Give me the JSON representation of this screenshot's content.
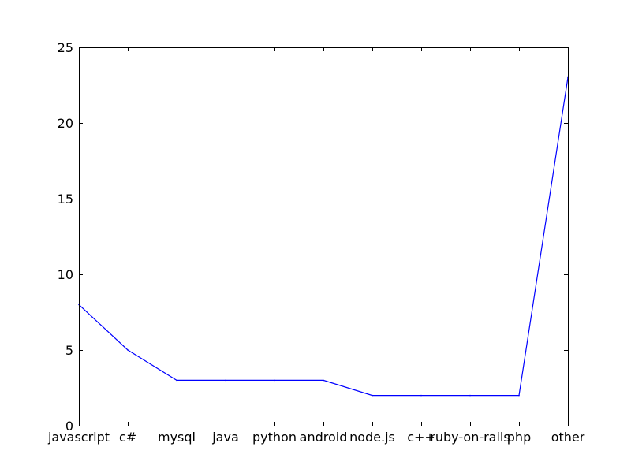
{
  "chart_data": {
    "type": "line",
    "title": "",
    "xlabel": "",
    "ylabel": "",
    "categories": [
      "javascript",
      "c#",
      "mysql",
      "java",
      "python",
      "android",
      "node.js",
      "c++",
      "ruby-on-rails",
      "php",
      "other"
    ],
    "series": [
      {
        "values": [
          8,
          5,
          3,
          3,
          3,
          3,
          2,
          2,
          2,
          2,
          23
        ]
      }
    ],
    "ylim": [
      0,
      25
    ],
    "yticks": [
      0,
      5,
      10,
      15,
      20,
      25
    ],
    "grid": false,
    "legend": "none",
    "colors": {
      "line": "#0000ff",
      "axes": "#000000",
      "background": "#ffffff"
    }
  }
}
